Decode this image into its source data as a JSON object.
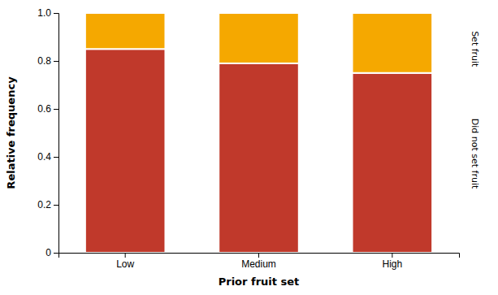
{
  "chart_data": {
    "type": "bar",
    "stacked": true,
    "grid": false,
    "categories": [
      "Low",
      "Medium",
      "High"
    ],
    "series": [
      {
        "name": "Did not set fruit",
        "color": "#C0392B",
        "values": [
          0.85,
          0.79,
          0.75
        ]
      },
      {
        "name": "Set fruit",
        "color": "#F5A800",
        "values": [
          0.15,
          0.21,
          0.25
        ]
      }
    ],
    "xlabel": "Prior fruit set",
    "ylabel": "Relative frequency",
    "ylim": [
      0,
      1.0
    ],
    "yticks": [
      0,
      0.2,
      0.4,
      0.6,
      0.8,
      {
        "value": 1.0,
        "label": "1.0"
      }
    ]
  }
}
